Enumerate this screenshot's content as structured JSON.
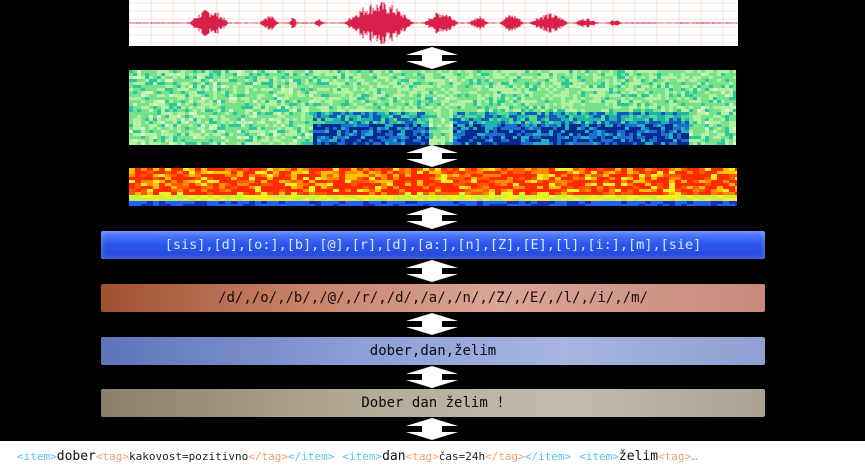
{
  "levels": {
    "phones": "[sis],[d],[o:],[b],[@],[r],[d],[a:],[n],[Z],[E],[l],[i:],[m],[sie]",
    "phonemes": "/d/,/o/,/b/,/@/,/r/,/d/,/a/,/n/,/Z/,/E/,/l/,/i/,/m/",
    "words": "dober,dan,želim",
    "sentence": "Dober dan želim !"
  },
  "markup": {
    "item_open": "<item>",
    "item_close": "</item>",
    "tag_open": "<tag>",
    "tag_close": "</tag>",
    "words": [
      {
        "word": "dober",
        "tag": "kakovost=pozitivno"
      },
      {
        "word": "dan",
        "tag": "čas=24h"
      },
      {
        "word": "želim",
        "tag": ""
      }
    ],
    "truncated_tail": "<tag>…"
  },
  "colors": {
    "waveform": "#d9204a",
    "phones_bar": "#2c59f0",
    "phonemes_bar": "#c7826a",
    "words_bar": "#8da0d7",
    "sentence_bar": "#b4aa98",
    "item_token": "#57c4e6",
    "tag_token": "#f0a070"
  }
}
